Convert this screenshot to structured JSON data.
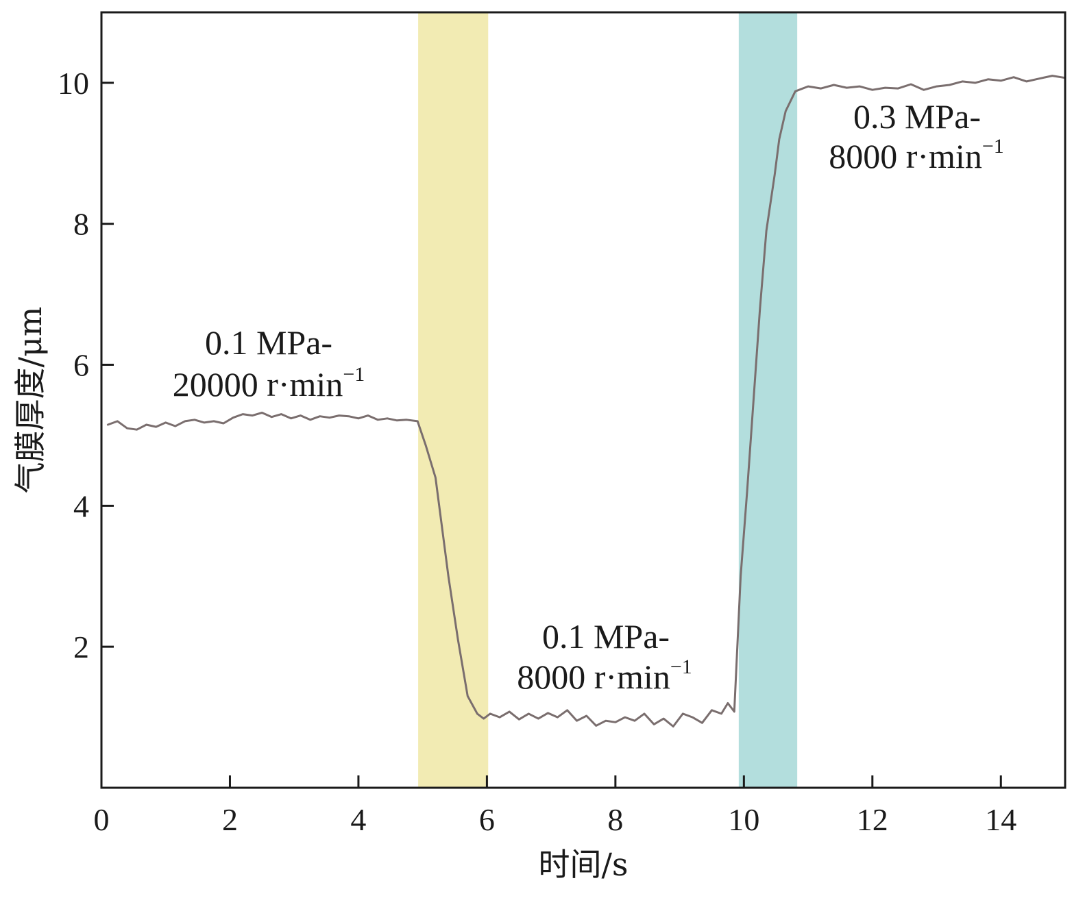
{
  "chart_data": {
    "type": "line",
    "title": "",
    "xlabel": "时间/s",
    "ylabel": "气膜厚度/μm",
    "xlim": [
      0,
      15
    ],
    "ylim": [
      0,
      11
    ],
    "x_ticks": [
      0,
      2,
      4,
      6,
      8,
      10,
      12,
      14
    ],
    "x_tick_labels": [
      "0",
      "2",
      "4",
      "6",
      "8",
      "10",
      "12",
      "14"
    ],
    "y_ticks": [
      2,
      4,
      6,
      8,
      10
    ],
    "y_tick_labels": [
      "2",
      "4",
      "6",
      "8",
      "10"
    ],
    "grid": false,
    "legend": "none",
    "colors": {
      "line": "#7a6e6e",
      "band1": "#f2ebb3",
      "band2": "#b3dedd",
      "axis": "#1a1a1a"
    },
    "bands": [
      {
        "name": "transition-1",
        "x_start": 4.93,
        "x_end": 6.02
      },
      {
        "name": "transition-2",
        "x_start": 9.92,
        "x_end": 10.83
      }
    ],
    "series": [
      {
        "name": "气膜厚度",
        "x": [
          0.1,
          0.25,
          0.4,
          0.55,
          0.7,
          0.85,
          1.0,
          1.15,
          1.3,
          1.45,
          1.6,
          1.75,
          1.9,
          2.05,
          2.2,
          2.35,
          2.5,
          2.65,
          2.8,
          2.95,
          3.1,
          3.25,
          3.4,
          3.55,
          3.7,
          3.85,
          4.0,
          4.15,
          4.3,
          4.45,
          4.6,
          4.75,
          4.92,
          5.05,
          5.2,
          5.3,
          5.4,
          5.55,
          5.7,
          5.85,
          5.95,
          6.05,
          6.2,
          6.35,
          6.5,
          6.65,
          6.8,
          6.95,
          7.1,
          7.25,
          7.4,
          7.55,
          7.7,
          7.85,
          8.0,
          8.15,
          8.3,
          8.45,
          8.6,
          8.75,
          8.9,
          9.05,
          9.2,
          9.35,
          9.5,
          9.65,
          9.75,
          9.85,
          9.95,
          10.05,
          10.15,
          10.25,
          10.35,
          10.48,
          10.55,
          10.65,
          10.8,
          11.0,
          11.2,
          11.4,
          11.6,
          11.8,
          12.0,
          12.2,
          12.4,
          12.6,
          12.8,
          13.0,
          13.2,
          13.4,
          13.6,
          13.8,
          14.0,
          14.2,
          14.4,
          14.6,
          14.8,
          15.0
        ],
        "y": [
          5.15,
          5.2,
          5.1,
          5.08,
          5.15,
          5.12,
          5.18,
          5.13,
          5.2,
          5.22,
          5.18,
          5.2,
          5.17,
          5.25,
          5.3,
          5.28,
          5.32,
          5.26,
          5.3,
          5.24,
          5.28,
          5.22,
          5.27,
          5.25,
          5.28,
          5.27,
          5.24,
          5.28,
          5.22,
          5.24,
          5.21,
          5.22,
          5.2,
          4.85,
          4.4,
          3.7,
          3.0,
          2.1,
          1.3,
          1.05,
          0.98,
          1.05,
          1.0,
          1.08,
          0.97,
          1.05,
          0.98,
          1.06,
          1.0,
          1.1,
          0.95,
          1.02,
          0.88,
          0.95,
          0.93,
          1.0,
          0.95,
          1.05,
          0.9,
          0.98,
          0.87,
          1.05,
          1.0,
          0.92,
          1.1,
          1.05,
          1.2,
          1.08,
          3.0,
          4.2,
          5.5,
          6.8,
          7.9,
          8.7,
          9.2,
          9.6,
          9.88,
          9.95,
          9.92,
          9.97,
          9.93,
          9.95,
          9.9,
          9.93,
          9.92,
          9.98,
          9.9,
          9.95,
          9.97,
          10.02,
          10.0,
          10.05,
          10.03,
          10.08,
          10.02,
          10.06,
          10.1,
          10.07
        ]
      }
    ],
    "annotations": [
      {
        "line1": "0.1 MPa-",
        "line2_main": "20000 r·min",
        "line2_sup": "−1"
      },
      {
        "line1": "0.1 MPa-",
        "line2_main": "8000 r·min",
        "line2_sup": "−1"
      },
      {
        "line1": "0.3 MPa-",
        "line2_main": "8000 r·min",
        "line2_sup": "−1"
      }
    ]
  }
}
